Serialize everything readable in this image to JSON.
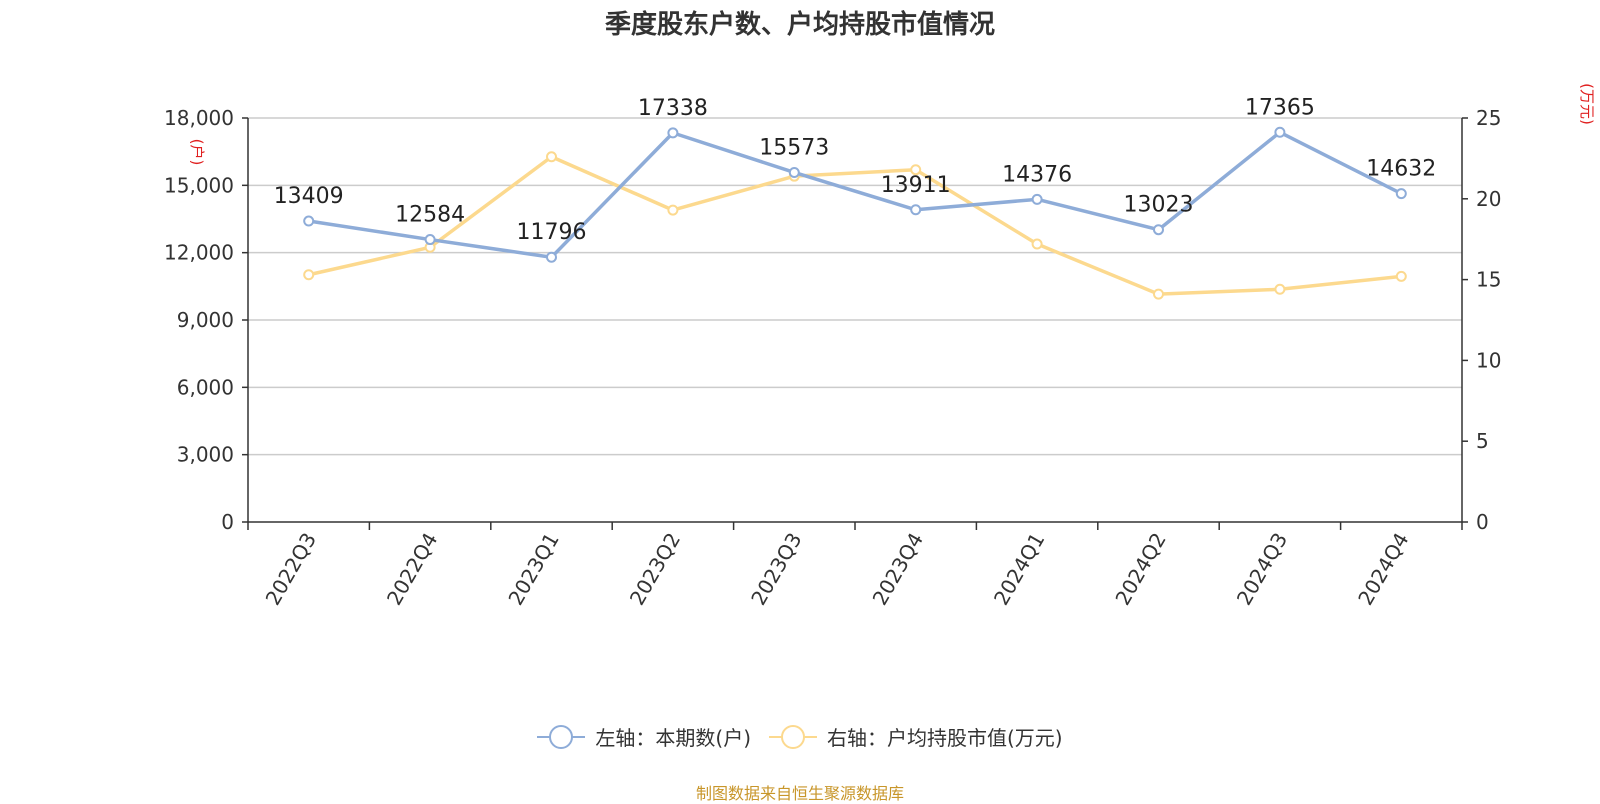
{
  "title": "季度股东户数、户均持股市值情况",
  "source": "制图数据来自恒生聚源数据库",
  "colors": {
    "series_left": "#8eacd8",
    "series_right": "#fcd98e",
    "axis_unit": "#e02020",
    "source_text": "#c8962a",
    "grid": "#cccccc",
    "axis": "#333333"
  },
  "legend": {
    "left_label": "左轴：本期数(户)",
    "right_label": "右轴：户均持股市值(万元)"
  },
  "chart_data": {
    "type": "line",
    "title": "季度股东户数、户均持股市值情况",
    "categories": [
      "2022Q3",
      "2022Q4",
      "2023Q1",
      "2023Q2",
      "2023Q3",
      "2023Q4",
      "2024Q1",
      "2024Q2",
      "2024Q3",
      "2024Q4"
    ],
    "y_left": {
      "unit_label": "(户)",
      "ylim": [
        0,
        18000
      ],
      "ticks": [
        0,
        3000,
        6000,
        9000,
        12000,
        15000,
        18000
      ],
      "tick_labels": [
        "0",
        "3,000",
        "6,000",
        "9,000",
        "12,000",
        "15,000",
        "18,000"
      ]
    },
    "y_right": {
      "unit_label": "(万元)",
      "ylim": [
        0,
        25
      ],
      "ticks": [
        0,
        5,
        10,
        15,
        20,
        25
      ],
      "tick_labels": [
        "0",
        "5",
        "10",
        "15",
        "20",
        "25"
      ]
    },
    "series": [
      {
        "name": "左轴：本期数(户)",
        "axis": "left",
        "values": [
          13409,
          12584,
          11796,
          17338,
          15573,
          13911,
          14376,
          13023,
          17365,
          14632
        ],
        "labels": [
          "13409",
          "12584",
          "11796",
          "17338",
          "15573",
          "13911",
          "14376",
          "13023",
          "17365",
          "14632"
        ]
      },
      {
        "name": "右轴：户均持股市值(万元)",
        "axis": "right",
        "values": [
          15.3,
          17.0,
          22.6,
          19.3,
          21.4,
          21.8,
          17.2,
          14.1,
          14.4,
          15.2
        ]
      }
    ],
    "grid": true,
    "legend_position": "bottom"
  }
}
